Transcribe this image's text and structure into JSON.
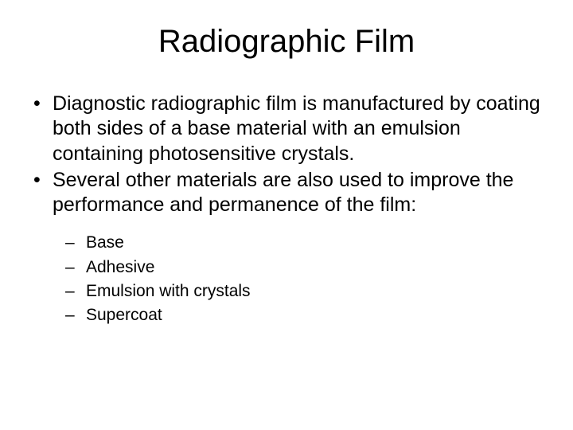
{
  "title": "Radiographic Film",
  "bullets": [
    "Diagnostic radiographic film is manufactured by coating both sides of a base material with an emulsion containing photosensitive crystals.",
    "Several other materials are also used to improve the performance and permanence of the film:"
  ],
  "subbullets": [
    "Base",
    "Adhesive",
    "Emulsion with crystals",
    "Supercoat"
  ],
  "colors": {
    "background": "#ffffff",
    "text": "#000000"
  },
  "typography": {
    "title_fontsize": 40,
    "bullet_fontsize": 25,
    "subbullet_fontsize": 21,
    "font_family": "Arial"
  }
}
